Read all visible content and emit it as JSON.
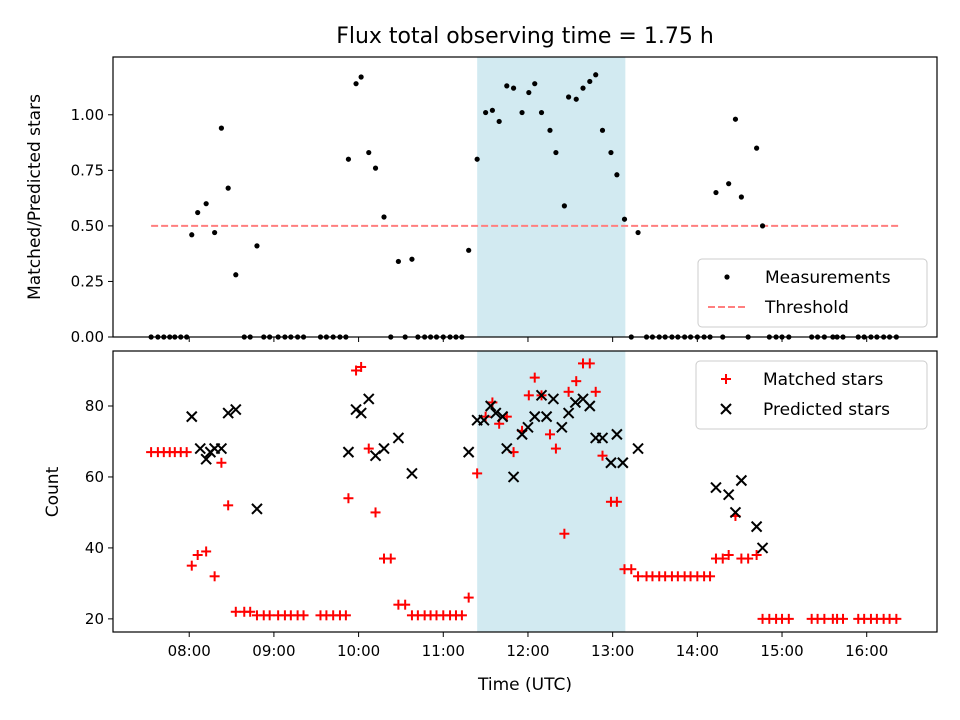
{
  "chart_data": {
    "type": "scatter",
    "title": "Flux total observing time = 1.75 h",
    "xlabel": "Time (UTC)",
    "x_ticks": [
      {
        "value": 8,
        "label": "08:00"
      },
      {
        "value": 9,
        "label": "09:00"
      },
      {
        "value": 10,
        "label": "10:00"
      },
      {
        "value": 11,
        "label": "11:00"
      },
      {
        "value": 12,
        "label": "12:00"
      },
      {
        "value": 13,
        "label": "13:00"
      },
      {
        "value": 14,
        "label": "14:00"
      },
      {
        "value": 15,
        "label": "15:00"
      },
      {
        "value": 16,
        "label": "16:00"
      }
    ],
    "xlim": [
      7.1,
      16.83
    ],
    "highlight_span": {
      "start": 11.4,
      "end": 13.15,
      "color": "#add8e6"
    },
    "top": {
      "ylabel": "Matched/Predicted stars",
      "ylim": [
        0,
        1.26
      ],
      "y_ticks": [
        {
          "value": 0,
          "label": "0.00"
        },
        {
          "value": 0.25,
          "label": "0.25"
        },
        {
          "value": 0.5,
          "label": "0.50"
        },
        {
          "value": 0.75,
          "label": "0.75"
        },
        {
          "value": 1.0,
          "label": "1.00"
        }
      ],
      "threshold": {
        "name": "Threshold",
        "value": 0.5,
        "x_range": [
          7.55,
          16.4
        ],
        "color": "#ff7f7f"
      },
      "measurements": {
        "name": "Measurements",
        "color": "#000000",
        "points": [
          [
            7.55,
            0
          ],
          [
            7.63,
            0
          ],
          [
            7.7,
            0
          ],
          [
            7.77,
            0
          ],
          [
            7.83,
            0
          ],
          [
            7.9,
            0
          ],
          [
            7.97,
            0
          ],
          [
            8.03,
            0.46
          ],
          [
            8.1,
            0.56
          ],
          [
            8.2,
            0.6
          ],
          [
            8.3,
            0.47
          ],
          [
            8.38,
            0.94
          ],
          [
            8.46,
            0.67
          ],
          [
            8.55,
            0.28
          ],
          [
            8.65,
            0
          ],
          [
            8.72,
            0
          ],
          [
            8.8,
            0.41
          ],
          [
            8.88,
            0
          ],
          [
            8.95,
            0
          ],
          [
            9.05,
            0
          ],
          [
            9.13,
            0
          ],
          [
            9.2,
            0
          ],
          [
            9.28,
            0
          ],
          [
            9.35,
            0
          ],
          [
            9.55,
            0
          ],
          [
            9.62,
            0
          ],
          [
            9.7,
            0
          ],
          [
            9.78,
            0
          ],
          [
            9.85,
            0
          ],
          [
            9.88,
            0.8
          ],
          [
            9.97,
            1.14
          ],
          [
            10.03,
            1.17
          ],
          [
            10.12,
            0.83
          ],
          [
            10.2,
            0.76
          ],
          [
            10.3,
            0.54
          ],
          [
            10.38,
            0
          ],
          [
            10.47,
            0.34
          ],
          [
            10.55,
            0
          ],
          [
            10.63,
            0.35
          ],
          [
            10.7,
            0
          ],
          [
            10.78,
            0
          ],
          [
            10.85,
            0
          ],
          [
            10.92,
            0
          ],
          [
            11.0,
            0
          ],
          [
            11.08,
            0
          ],
          [
            11.15,
            0
          ],
          [
            11.22,
            0
          ],
          [
            11.3,
            0.39
          ],
          [
            11.4,
            0.8
          ],
          [
            11.5,
            1.01
          ],
          [
            11.58,
            1.02
          ],
          [
            11.66,
            0.97
          ],
          [
            11.75,
            1.13
          ],
          [
            11.83,
            1.12
          ],
          [
            11.93,
            1.01
          ],
          [
            12.01,
            1.1
          ],
          [
            12.08,
            1.14
          ],
          [
            12.16,
            1.01
          ],
          [
            12.26,
            0.93
          ],
          [
            12.33,
            0.83
          ],
          [
            12.43,
            0.59
          ],
          [
            12.48,
            1.08
          ],
          [
            12.57,
            1.07
          ],
          [
            12.65,
            1.12
          ],
          [
            12.73,
            1.15
          ],
          [
            12.8,
            1.18
          ],
          [
            12.88,
            0.93
          ],
          [
            12.98,
            0.83
          ],
          [
            13.05,
            0.73
          ],
          [
            13.14,
            0.53
          ],
          [
            13.22,
            0
          ],
          [
            13.3,
            0.47
          ],
          [
            13.4,
            0
          ],
          [
            13.47,
            0
          ],
          [
            13.55,
            0
          ],
          [
            13.62,
            0
          ],
          [
            13.7,
            0
          ],
          [
            13.77,
            0
          ],
          [
            13.85,
            0
          ],
          [
            13.92,
            0
          ],
          [
            14.0,
            0
          ],
          [
            14.08,
            0
          ],
          [
            14.15,
            0
          ],
          [
            14.22,
            0.65
          ],
          [
            14.3,
            0
          ],
          [
            14.37,
            0.69
          ],
          [
            14.45,
            0.98
          ],
          [
            14.52,
            0.63
          ],
          [
            14.6,
            0
          ],
          [
            14.7,
            0.85
          ],
          [
            14.77,
            0.5
          ],
          [
            14.85,
            0
          ],
          [
            14.93,
            0
          ],
          [
            15.0,
            0
          ],
          [
            15.08,
            0
          ],
          [
            15.35,
            0
          ],
          [
            15.42,
            0
          ],
          [
            15.5,
            0
          ],
          [
            15.6,
            0
          ],
          [
            15.65,
            0
          ],
          [
            15.72,
            0
          ],
          [
            15.9,
            0
          ],
          [
            15.97,
            0
          ],
          [
            16.05,
            0
          ],
          [
            16.12,
            0
          ],
          [
            16.2,
            0
          ],
          [
            16.27,
            0
          ],
          [
            16.35,
            0
          ]
        ]
      },
      "legend": {
        "placement": "lower right"
      }
    },
    "bottom": {
      "ylabel": "Count",
      "ylim": [
        16.3,
        95.5
      ],
      "y_ticks": [
        {
          "value": 20,
          "label": "20"
        },
        {
          "value": 40,
          "label": "40"
        },
        {
          "value": 60,
          "label": "60"
        },
        {
          "value": 80,
          "label": "80"
        }
      ],
      "matched": {
        "name": "Matched stars",
        "color": "#ff0000",
        "marker": "plus",
        "points": [
          [
            7.55,
            67
          ],
          [
            7.63,
            67
          ],
          [
            7.7,
            67
          ],
          [
            7.77,
            67
          ],
          [
            7.83,
            67
          ],
          [
            7.9,
            67
          ],
          [
            7.97,
            67
          ],
          [
            8.03,
            35
          ],
          [
            8.1,
            38
          ],
          [
            8.2,
            39
          ],
          [
            8.3,
            32
          ],
          [
            8.38,
            64
          ],
          [
            8.46,
            52
          ],
          [
            8.55,
            22
          ],
          [
            8.65,
            22
          ],
          [
            8.72,
            22
          ],
          [
            8.8,
            21
          ],
          [
            8.88,
            21
          ],
          [
            8.95,
            21
          ],
          [
            9.05,
            21
          ],
          [
            9.13,
            21
          ],
          [
            9.2,
            21
          ],
          [
            9.28,
            21
          ],
          [
            9.35,
            21
          ],
          [
            9.55,
            21
          ],
          [
            9.62,
            21
          ],
          [
            9.7,
            21
          ],
          [
            9.78,
            21
          ],
          [
            9.85,
            21
          ],
          [
            9.88,
            54
          ],
          [
            9.97,
            90
          ],
          [
            10.03,
            91
          ],
          [
            10.12,
            68
          ],
          [
            10.2,
            50
          ],
          [
            10.3,
            37
          ],
          [
            10.38,
            37
          ],
          [
            10.47,
            24
          ],
          [
            10.55,
            24
          ],
          [
            10.63,
            21
          ],
          [
            10.7,
            21
          ],
          [
            10.78,
            21
          ],
          [
            10.85,
            21
          ],
          [
            10.92,
            21
          ],
          [
            11.0,
            21
          ],
          [
            11.08,
            21
          ],
          [
            11.15,
            21
          ],
          [
            11.22,
            21
          ],
          [
            11.3,
            26
          ],
          [
            11.4,
            61
          ],
          [
            11.5,
            77
          ],
          [
            11.58,
            81
          ],
          [
            11.66,
            75
          ],
          [
            11.75,
            77
          ],
          [
            11.83,
            67
          ],
          [
            11.93,
            73
          ],
          [
            12.01,
            83
          ],
          [
            12.08,
            88
          ],
          [
            12.16,
            83
          ],
          [
            12.26,
            72
          ],
          [
            12.33,
            68
          ],
          [
            12.43,
            44
          ],
          [
            12.48,
            84
          ],
          [
            12.57,
            87
          ],
          [
            12.65,
            92
          ],
          [
            12.73,
            92
          ],
          [
            12.8,
            84
          ],
          [
            12.88,
            66
          ],
          [
            12.98,
            53
          ],
          [
            13.05,
            53
          ],
          [
            13.14,
            34
          ],
          [
            13.22,
            34
          ],
          [
            13.3,
            32
          ],
          [
            13.4,
            32
          ],
          [
            13.47,
            32
          ],
          [
            13.55,
            32
          ],
          [
            13.62,
            32
          ],
          [
            13.7,
            32
          ],
          [
            13.77,
            32
          ],
          [
            13.85,
            32
          ],
          [
            13.92,
            32
          ],
          [
            14.0,
            32
          ],
          [
            14.08,
            32
          ],
          [
            14.15,
            32
          ],
          [
            14.22,
            37
          ],
          [
            14.3,
            37
          ],
          [
            14.37,
            38
          ],
          [
            14.45,
            49
          ],
          [
            14.52,
            37
          ],
          [
            14.6,
            37
          ],
          [
            14.7,
            38
          ],
          [
            14.77,
            20
          ],
          [
            14.85,
            20
          ],
          [
            14.93,
            20
          ],
          [
            15.0,
            20
          ],
          [
            15.08,
            20
          ],
          [
            15.35,
            20
          ],
          [
            15.42,
            20
          ],
          [
            15.5,
            20
          ],
          [
            15.6,
            20
          ],
          [
            15.65,
            20
          ],
          [
            15.72,
            20
          ],
          [
            15.9,
            20
          ],
          [
            15.97,
            20
          ],
          [
            16.05,
            20
          ],
          [
            16.12,
            20
          ],
          [
            16.2,
            20
          ],
          [
            16.27,
            20
          ],
          [
            16.35,
            20
          ]
        ]
      },
      "predicted": {
        "name": "Predicted stars",
        "color": "#000000",
        "marker": "x",
        "points": [
          [
            8.03,
            77
          ],
          [
            8.13,
            68
          ],
          [
            8.2,
            65
          ],
          [
            8.25,
            67
          ],
          [
            8.3,
            68
          ],
          [
            8.38,
            68
          ],
          [
            8.46,
            78
          ],
          [
            8.55,
            79
          ],
          [
            8.8,
            51
          ],
          [
            9.88,
            67
          ],
          [
            9.97,
            79
          ],
          [
            10.03,
            78
          ],
          [
            10.12,
            82
          ],
          [
            10.2,
            66
          ],
          [
            10.3,
            68
          ],
          [
            10.47,
            71
          ],
          [
            10.63,
            61
          ],
          [
            11.3,
            67
          ],
          [
            11.4,
            76
          ],
          [
            11.48,
            76
          ],
          [
            11.56,
            80
          ],
          [
            11.62,
            78
          ],
          [
            11.7,
            77
          ],
          [
            11.75,
            68
          ],
          [
            11.83,
            60
          ],
          [
            11.93,
            72
          ],
          [
            12.0,
            74
          ],
          [
            12.08,
            77
          ],
          [
            12.16,
            83
          ],
          [
            12.22,
            77
          ],
          [
            12.3,
            82
          ],
          [
            12.4,
            74
          ],
          [
            12.48,
            78
          ],
          [
            12.56,
            81
          ],
          [
            12.65,
            82
          ],
          [
            12.73,
            80
          ],
          [
            12.8,
            71
          ],
          [
            12.88,
            71
          ],
          [
            12.98,
            64
          ],
          [
            13.05,
            72
          ],
          [
            13.12,
            64
          ],
          [
            13.3,
            68
          ],
          [
            14.22,
            57
          ],
          [
            14.37,
            55
          ],
          [
            14.45,
            50
          ],
          [
            14.52,
            59
          ],
          [
            14.7,
            46
          ],
          [
            14.77,
            40
          ]
        ]
      },
      "legend": {
        "placement": "upper right"
      }
    }
  }
}
